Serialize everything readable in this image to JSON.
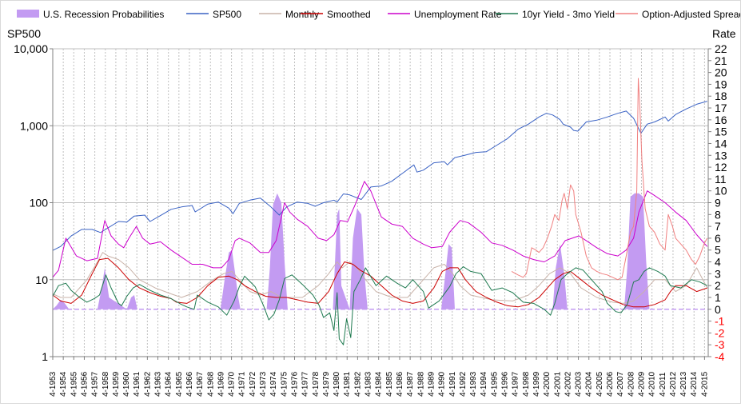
{
  "chart_data": {
    "type": "line",
    "title": "",
    "legend": {
      "position": "top",
      "entries": [
        {
          "name": "U.S. Recession Probabilities",
          "color": "#c39bf2",
          "kind": "area"
        },
        {
          "name": "SP500",
          "color": "#3a62c4",
          "kind": "line"
        },
        {
          "name": "Monthly",
          "color": "#c9b3a9",
          "kind": "line"
        },
        {
          "name": "Smoothed",
          "color": "#cc0000",
          "kind": "line"
        },
        {
          "name": "Unemployment Rate",
          "color": "#cc00cc",
          "kind": "line"
        },
        {
          "name": "10yr Yield - 3mo Yield",
          "color": "#1f7a50",
          "kind": "line"
        },
        {
          "name": "Option-Adjusted Spread",
          "color": "#f08080",
          "kind": "line"
        }
      ]
    },
    "left_axis": {
      "title": "SP500",
      "scale": "log",
      "range": [
        1,
        10000
      ],
      "ticks": [
        {
          "v": 10000,
          "label": "10,000"
        },
        {
          "v": 1000,
          "label": "1,000"
        },
        {
          "v": 100,
          "label": "100"
        },
        {
          "v": 10,
          "label": "10"
        },
        {
          "v": 1,
          "label": "1"
        }
      ]
    },
    "right_axis": {
      "title": "Rate",
      "range": [
        -4,
        22
      ],
      "ticks": [
        22,
        21,
        20,
        19,
        18,
        17,
        16,
        15,
        14,
        13,
        12,
        11,
        10,
        9,
        8,
        7,
        6,
        5,
        4,
        3,
        2,
        1,
        0,
        -1,
        -2,
        -3,
        -4
      ],
      "negative_color": "#ff0000"
    },
    "x_axis": {
      "range": [
        1953.25,
        2015.6
      ],
      "tick_labels": [
        "4-1953",
        "4-1954",
        "4-1955",
        "4-1956",
        "4-1957",
        "4-1958",
        "4-1959",
        "4-1960",
        "4-1961",
        "4-1962",
        "4-1963",
        "4-1964",
        "4-1965",
        "4-1966",
        "4-1967",
        "4-1968",
        "4-1969",
        "4-1970",
        "4-1971",
        "4-1972",
        "4-1973",
        "4-1974",
        "4-1975",
        "4-1976",
        "4-1977",
        "4-1978",
        "4-1979",
        "4-1980",
        "4-1981",
        "4-1982",
        "4-1983",
        "4-1984",
        "4-1985",
        "4-1986",
        "4-1987",
        "4-1988",
        "4-1989",
        "4-1990",
        "4-1991",
        "4-1992",
        "4-1993",
        "4-1994",
        "4-1995",
        "4-1996",
        "4-1997",
        "4-1998",
        "4-1999",
        "4-2000",
        "4-2001",
        "4-2002",
        "4-2003",
        "4-2004",
        "4-2005",
        "4-2006",
        "4-2007",
        "4-2008",
        "4-2009",
        "4-2010",
        "4-2011",
        "4-2012",
        "4-2013",
        "4-2014",
        "4-2015"
      ]
    },
    "series": [
      {
        "name": "U.S. Recession Probabilities",
        "axis": "right",
        "x": [
          1953.25,
          1953.6,
          1954.0,
          1954.4,
          1954.8,
          1957.5,
          1957.9,
          1958.2,
          1958.6,
          1960.3,
          1960.7,
          1961.0,
          1961.3,
          1969.2,
          1969.6,
          1970.0,
          1970.3,
          1970.6,
          1970.9,
          1971.1,
          1973.6,
          1973.9,
          1974.2,
          1974.6,
          1975.0,
          1975.3,
          1975.6,
          1979.9,
          1980.1,
          1980.3,
          1980.5,
          1980.7,
          1981.5,
          1981.8,
          1982.2,
          1982.6,
          1982.9,
          1983.2,
          1990.2,
          1990.6,
          1990.9,
          1991.2,
          1991.5,
          2000.8,
          2001.1,
          2001.5,
          2001.9,
          2002.2,
          2007.6,
          2007.9,
          2008.2,
          2008.6,
          2009.0,
          2009.4,
          2009.7,
          2010.0,
          2015.6
        ],
        "y": [
          0,
          0.3,
          0.8,
          0.5,
          0,
          0,
          1.8,
          3.5,
          1.0,
          0,
          1.0,
          1.2,
          0,
          0,
          2.5,
          4.8,
          5.0,
          3.0,
          1.0,
          0,
          0,
          3.5,
          8.8,
          9.8,
          9.0,
          4.0,
          0,
          0,
          4.0,
          8.0,
          8.5,
          2.0,
          0,
          6.0,
          8.5,
          8.0,
          3.0,
          0,
          0,
          3.0,
          5.5,
          5.2,
          0,
          0,
          3.5,
          5.5,
          3.0,
          0,
          0,
          3.5,
          9.5,
          9.8,
          9.8,
          9.5,
          4.0,
          0,
          0
        ]
      },
      {
        "name": "SP500",
        "axis": "left",
        "x": [
          1953.25,
          1954.0,
          1955.0,
          1956.0,
          1957.0,
          1957.8,
          1958.5,
          1959.5,
          1960.3,
          1961.0,
          1962.0,
          1962.5,
          1963.5,
          1964.5,
          1965.5,
          1966.5,
          1966.8,
          1968.0,
          1969.0,
          1970.0,
          1970.4,
          1971.0,
          1972.0,
          1973.0,
          1974.0,
          1974.8,
          1975.5,
          1976.5,
          1977.5,
          1978.2,
          1979.0,
          1980.0,
          1980.3,
          1980.9,
          1981.5,
          1982.6,
          1983.5,
          1984.5,
          1985.5,
          1986.5,
          1987.6,
          1987.9,
          1988.5,
          1989.5,
          1990.5,
          1990.8,
          1991.5,
          1992.5,
          1993.5,
          1994.5,
          1995.5,
          1996.5,
          1997.5,
          1998.5,
          1999.5,
          2000.2,
          2000.8,
          2001.5,
          2001.8,
          2002.5,
          2002.8,
          2003.2,
          2004.0,
          2005.0,
          2006.0,
          2007.0,
          2007.8,
          2008.5,
          2009.2,
          2009.8,
          2010.5,
          2011.5,
          2011.8,
          2012.5,
          2013.5,
          2014.5,
          2015.5
        ],
        "y": [
          24,
          27,
          37,
          45,
          45,
          41,
          47,
          57,
          56,
          67,
          69,
          57,
          68,
          82,
          88,
          92,
          76,
          96,
          102,
          85,
          72,
          98,
          108,
          115,
          88,
          69,
          88,
          102,
          98,
          90,
          100,
          108,
          102,
          130,
          126,
          110,
          160,
          165,
          190,
          240,
          310,
          250,
          265,
          330,
          340,
          310,
          385,
          415,
          450,
          460,
          560,
          680,
          900,
          1050,
          1300,
          1450,
          1380,
          1200,
          1050,
          960,
          870,
          850,
          1120,
          1180,
          1300,
          1450,
          1550,
          1250,
          800,
          1050,
          1120,
          1300,
          1150,
          1400,
          1650,
          1900,
          2080
        ]
      },
      {
        "name": "Monthly",
        "axis": "right",
        "x": [
          1953.25,
          1954.0,
          1955.0,
          1956.5,
          1957.5,
          1958.0,
          1958.5,
          1959.5,
          1960.5,
          1961.5,
          1963.0,
          1964.5,
          1965.5,
          1967.0,
          1968.5,
          1969.5,
          1970.3,
          1971.0,
          1972.0,
          1973.0,
          1974.0,
          1975.0,
          1975.5,
          1977.0,
          1978.5,
          1979.5,
          1980.3,
          1980.8,
          1981.5,
          1982.2,
          1983.0,
          1984.0,
          1985.5,
          1987.0,
          1988.5,
          1989.5,
          1990.5,
          1991.3,
          1992.0,
          1993.0,
          1995.0,
          1997.0,
          1998.5,
          1999.5,
          2000.5,
          2001.5,
          2002.5,
          2003.5,
          2005.0,
          2006.5,
          2007.5,
          2008.5,
          2009.5,
          2010.5,
          2011.5,
          2012.5,
          2013.5,
          2014.5,
          2015.5
        ],
        "y": [
          1.3,
          1.0,
          1.0,
          2.5,
          4.0,
          4.8,
          4.5,
          4.2,
          3.5,
          2.5,
          1.8,
          1.3,
          1.0,
          1.5,
          2.5,
          3.0,
          3.2,
          2.5,
          1.5,
          1.2,
          1.5,
          1.0,
          1.0,
          1.0,
          2.0,
          3.0,
          4.0,
          3.5,
          4.0,
          3.5,
          2.5,
          1.5,
          1.0,
          1.0,
          2.5,
          3.5,
          3.8,
          3.0,
          2.0,
          1.2,
          0.8,
          0.7,
          1.2,
          2.0,
          3.0,
          3.5,
          3.0,
          1.8,
          1.0,
          0.6,
          0.5,
          0.7,
          1.5,
          2.5,
          2.5,
          1.5,
          2.0,
          3.5,
          1.8
        ]
      },
      {
        "name": "Smoothed",
        "axis": "right",
        "x": [
          1953.25,
          1954.0,
          1955.0,
          1956.0,
          1957.0,
          1957.7,
          1958.5,
          1959.5,
          1960.5,
          1961.5,
          1962.5,
          1963.5,
          1964.5,
          1965.0,
          1966.0,
          1967.0,
          1968.0,
          1969.0,
          1970.0,
          1970.8,
          1971.5,
          1972.5,
          1973.5,
          1974.5,
          1975.5,
          1976.5,
          1977.5,
          1978.5,
          1979.5,
          1980.3,
          1981.0,
          1981.8,
          1982.5,
          1983.5,
          1984.5,
          1985.5,
          1986.5,
          1987.5,
          1988.5,
          1989.5,
          1990.3,
          1991.0,
          1991.8,
          1992.5,
          1993.5,
          1994.5,
          1995.5,
          1996.5,
          1997.5,
          1998.5,
          1999.5,
          2000.5,
          2001.0,
          2001.8,
          2002.5,
          2003.5,
          2004.5,
          2005.5,
          2006.5,
          2007.5,
          2008.5,
          2009.5,
          2010.5,
          2011.5,
          2012.0,
          2012.5,
          2013.5,
          2014.5,
          2015.5
        ],
        "y": [
          1.2,
          0.7,
          0.5,
          1.2,
          3.0,
          4.2,
          4.3,
          3.5,
          2.5,
          1.8,
          1.4,
          1.1,
          0.9,
          0.6,
          0.5,
          1.0,
          2.0,
          2.7,
          2.8,
          2.5,
          2.0,
          1.5,
          1.1,
          1.0,
          1.0,
          0.8,
          0.6,
          0.5,
          1.5,
          3.0,
          4.0,
          3.8,
          3.3,
          2.8,
          2.0,
          1.2,
          0.7,
          0.5,
          0.7,
          1.8,
          3.2,
          3.5,
          3.5,
          2.5,
          1.5,
          1.0,
          0.6,
          0.3,
          0.2,
          0.4,
          1.0,
          2.0,
          2.5,
          3.0,
          3.2,
          2.5,
          1.8,
          1.2,
          0.8,
          0.4,
          0.2,
          0.2,
          0.4,
          0.8,
          1.5,
          2.0,
          2.0,
          1.5,
          1.8
        ]
      },
      {
        "name": "Unemployment Rate",
        "axis": "right",
        "x": [
          1953.25,
          1953.8,
          1954.5,
          1955.5,
          1956.5,
          1957.5,
          1958.2,
          1958.8,
          1959.5,
          1960.0,
          1960.5,
          1961.2,
          1961.8,
          1962.5,
          1963.5,
          1964.5,
          1965.5,
          1966.5,
          1967.5,
          1968.5,
          1969.3,
          1970.0,
          1970.6,
          1971.0,
          1972.0,
          1973.0,
          1973.8,
          1974.5,
          1975.3,
          1975.8,
          1976.5,
          1977.5,
          1978.5,
          1979.3,
          1980.0,
          1980.6,
          1981.3,
          1982.0,
          1982.9,
          1983.5,
          1984.5,
          1985.5,
          1986.5,
          1987.5,
          1988.5,
          1989.3,
          1990.3,
          1991.0,
          1992.0,
          1992.8,
          1994.0,
          1995.0,
          1996.0,
          1997.0,
          1998.0,
          1999.0,
          2000.0,
          2001.0,
          2002.0,
          2003.3,
          2004.0,
          2005.0,
          2006.0,
          2007.0,
          2007.8,
          2008.5,
          2009.0,
          2009.8,
          2010.5,
          2011.5,
          2012.5,
          2013.5,
          2014.5,
          2015.5
        ],
        "y": [
          2.7,
          3.3,
          6.0,
          4.5,
          4.1,
          4.3,
          7.5,
          6.2,
          5.5,
          5.2,
          6.0,
          7.0,
          6.0,
          5.5,
          5.7,
          5.0,
          4.4,
          3.8,
          3.8,
          3.5,
          3.5,
          4.2,
          5.8,
          6.0,
          5.6,
          4.8,
          4.8,
          5.8,
          9.0,
          8.2,
          7.6,
          7.0,
          6.0,
          5.8,
          6.3,
          7.5,
          7.4,
          8.8,
          10.8,
          10.0,
          7.8,
          7.2,
          7.0,
          6.0,
          5.5,
          5.2,
          5.3,
          6.5,
          7.5,
          7.3,
          6.5,
          5.6,
          5.4,
          5.0,
          4.5,
          4.2,
          4.0,
          4.5,
          5.8,
          6.2,
          5.8,
          5.2,
          4.7,
          4.5,
          5.0,
          6.0,
          8.2,
          10.0,
          9.6,
          9.0,
          8.2,
          7.5,
          6.3,
          5.3
        ]
      },
      {
        "name": "10yr Yield - 3mo Yield",
        "axis": "right",
        "x": [
          1953.25,
          1953.8,
          1954.5,
          1955.0,
          1955.8,
          1956.5,
          1957.2,
          1957.7,
          1958.3,
          1958.8,
          1959.5,
          1959.8,
          1960.3,
          1960.9,
          1961.5,
          1962.5,
          1963.5,
          1964.5,
          1965.5,
          1966.0,
          1966.7,
          1967.0,
          1967.5,
          1968.0,
          1969.0,
          1969.8,
          1970.5,
          1971.0,
          1971.5,
          1972.5,
          1973.3,
          1973.8,
          1974.3,
          1974.8,
          1975.3,
          1976.0,
          1977.0,
          1978.0,
          1978.6,
          1979.0,
          1979.6,
          1980.0,
          1980.3,
          1980.5,
          1980.9,
          1981.2,
          1981.6,
          1981.9,
          1982.5,
          1983.0,
          1984.0,
          1985.0,
          1986.0,
          1986.8,
          1987.5,
          1988.5,
          1989.0,
          1989.5,
          1990.0,
          1991.0,
          1991.6,
          1992.3,
          1993.0,
          1994.0,
          1995.0,
          1996.0,
          1997.0,
          1998.0,
          1999.0,
          2000.0,
          2000.6,
          2001.0,
          2001.6,
          2002.2,
          2003.0,
          2003.7,
          2004.5,
          2005.5,
          2006.0,
          2006.8,
          2007.3,
          2007.9,
          2008.5,
          2009.0,
          2009.5,
          2010.0,
          2010.8,
          2011.5,
          2012.0,
          2013.0,
          2014.0,
          2014.8,
          2015.5
        ],
        "y": [
          1.1,
          2.0,
          2.2,
          1.6,
          1.0,
          0.6,
          0.9,
          1.2,
          2.9,
          1.8,
          0.5,
          0.3,
          1.1,
          1.8,
          2.1,
          1.6,
          1.2,
          0.9,
          0.4,
          0.2,
          0.0,
          1.2,
          0.9,
          0.6,
          0.2,
          -0.5,
          0.7,
          1.9,
          2.8,
          1.9,
          0.3,
          -0.9,
          -0.4,
          0.8,
          2.6,
          2.9,
          2.1,
          1.2,
          0.3,
          -0.7,
          -0.3,
          -1.8,
          1.4,
          -2.5,
          -3.0,
          -0.8,
          -2.4,
          1.5,
          2.5,
          3.5,
          2.0,
          2.8,
          2.2,
          1.8,
          2.5,
          1.5,
          0.1,
          0.4,
          0.7,
          1.9,
          3.0,
          3.6,
          3.2,
          3.0,
          1.6,
          1.8,
          1.4,
          0.6,
          0.5,
          0.0,
          -0.5,
          0.5,
          2.5,
          3.0,
          3.5,
          3.3,
          2.5,
          1.5,
          0.5,
          -0.2,
          -0.3,
          0.4,
          2.3,
          2.5,
          3.2,
          3.5,
          3.2,
          2.8,
          2.0,
          1.8,
          2.5,
          2.3,
          2.0
        ]
      },
      {
        "name": "Option-Adjusted Spread",
        "axis": "right",
        "x": [
          1996.9,
          1997.5,
          1998.0,
          1998.3,
          1998.8,
          1999.2,
          1999.5,
          1999.9,
          2000.3,
          2000.7,
          2001.0,
          2001.4,
          2001.7,
          2001.9,
          2002.2,
          2002.5,
          2002.8,
          2003.0,
          2003.5,
          2004.0,
          2004.5,
          2005.0,
          2005.5,
          2006.0,
          2006.5,
          2007.0,
          2007.4,
          2007.8,
          2008.2,
          2008.5,
          2008.8,
          2008.95,
          2009.1,
          2009.3,
          2009.6,
          2010.0,
          2010.5,
          2011.0,
          2011.5,
          2011.8,
          2012.2,
          2012.5,
          2013.0,
          2013.5,
          2014.0,
          2014.4,
          2014.8,
          2015.2,
          2015.5
        ],
        "y": [
          3.2,
          2.9,
          2.7,
          3.0,
          5.2,
          5.0,
          4.8,
          5.2,
          6.0,
          7.0,
          8.0,
          7.5,
          9.2,
          9.8,
          8.5,
          10.5,
          10.0,
          8.0,
          6.5,
          4.5,
          3.5,
          3.2,
          3.0,
          2.9,
          2.7,
          2.5,
          2.7,
          4.5,
          6.5,
          7.0,
          10.0,
          19.5,
          17.0,
          12.5,
          8.5,
          7.0,
          6.5,
          5.5,
          5.0,
          8.0,
          7.0,
          6.0,
          5.5,
          5.0,
          4.2,
          3.8,
          4.5,
          5.5,
          6.0
        ]
      }
    ]
  }
}
